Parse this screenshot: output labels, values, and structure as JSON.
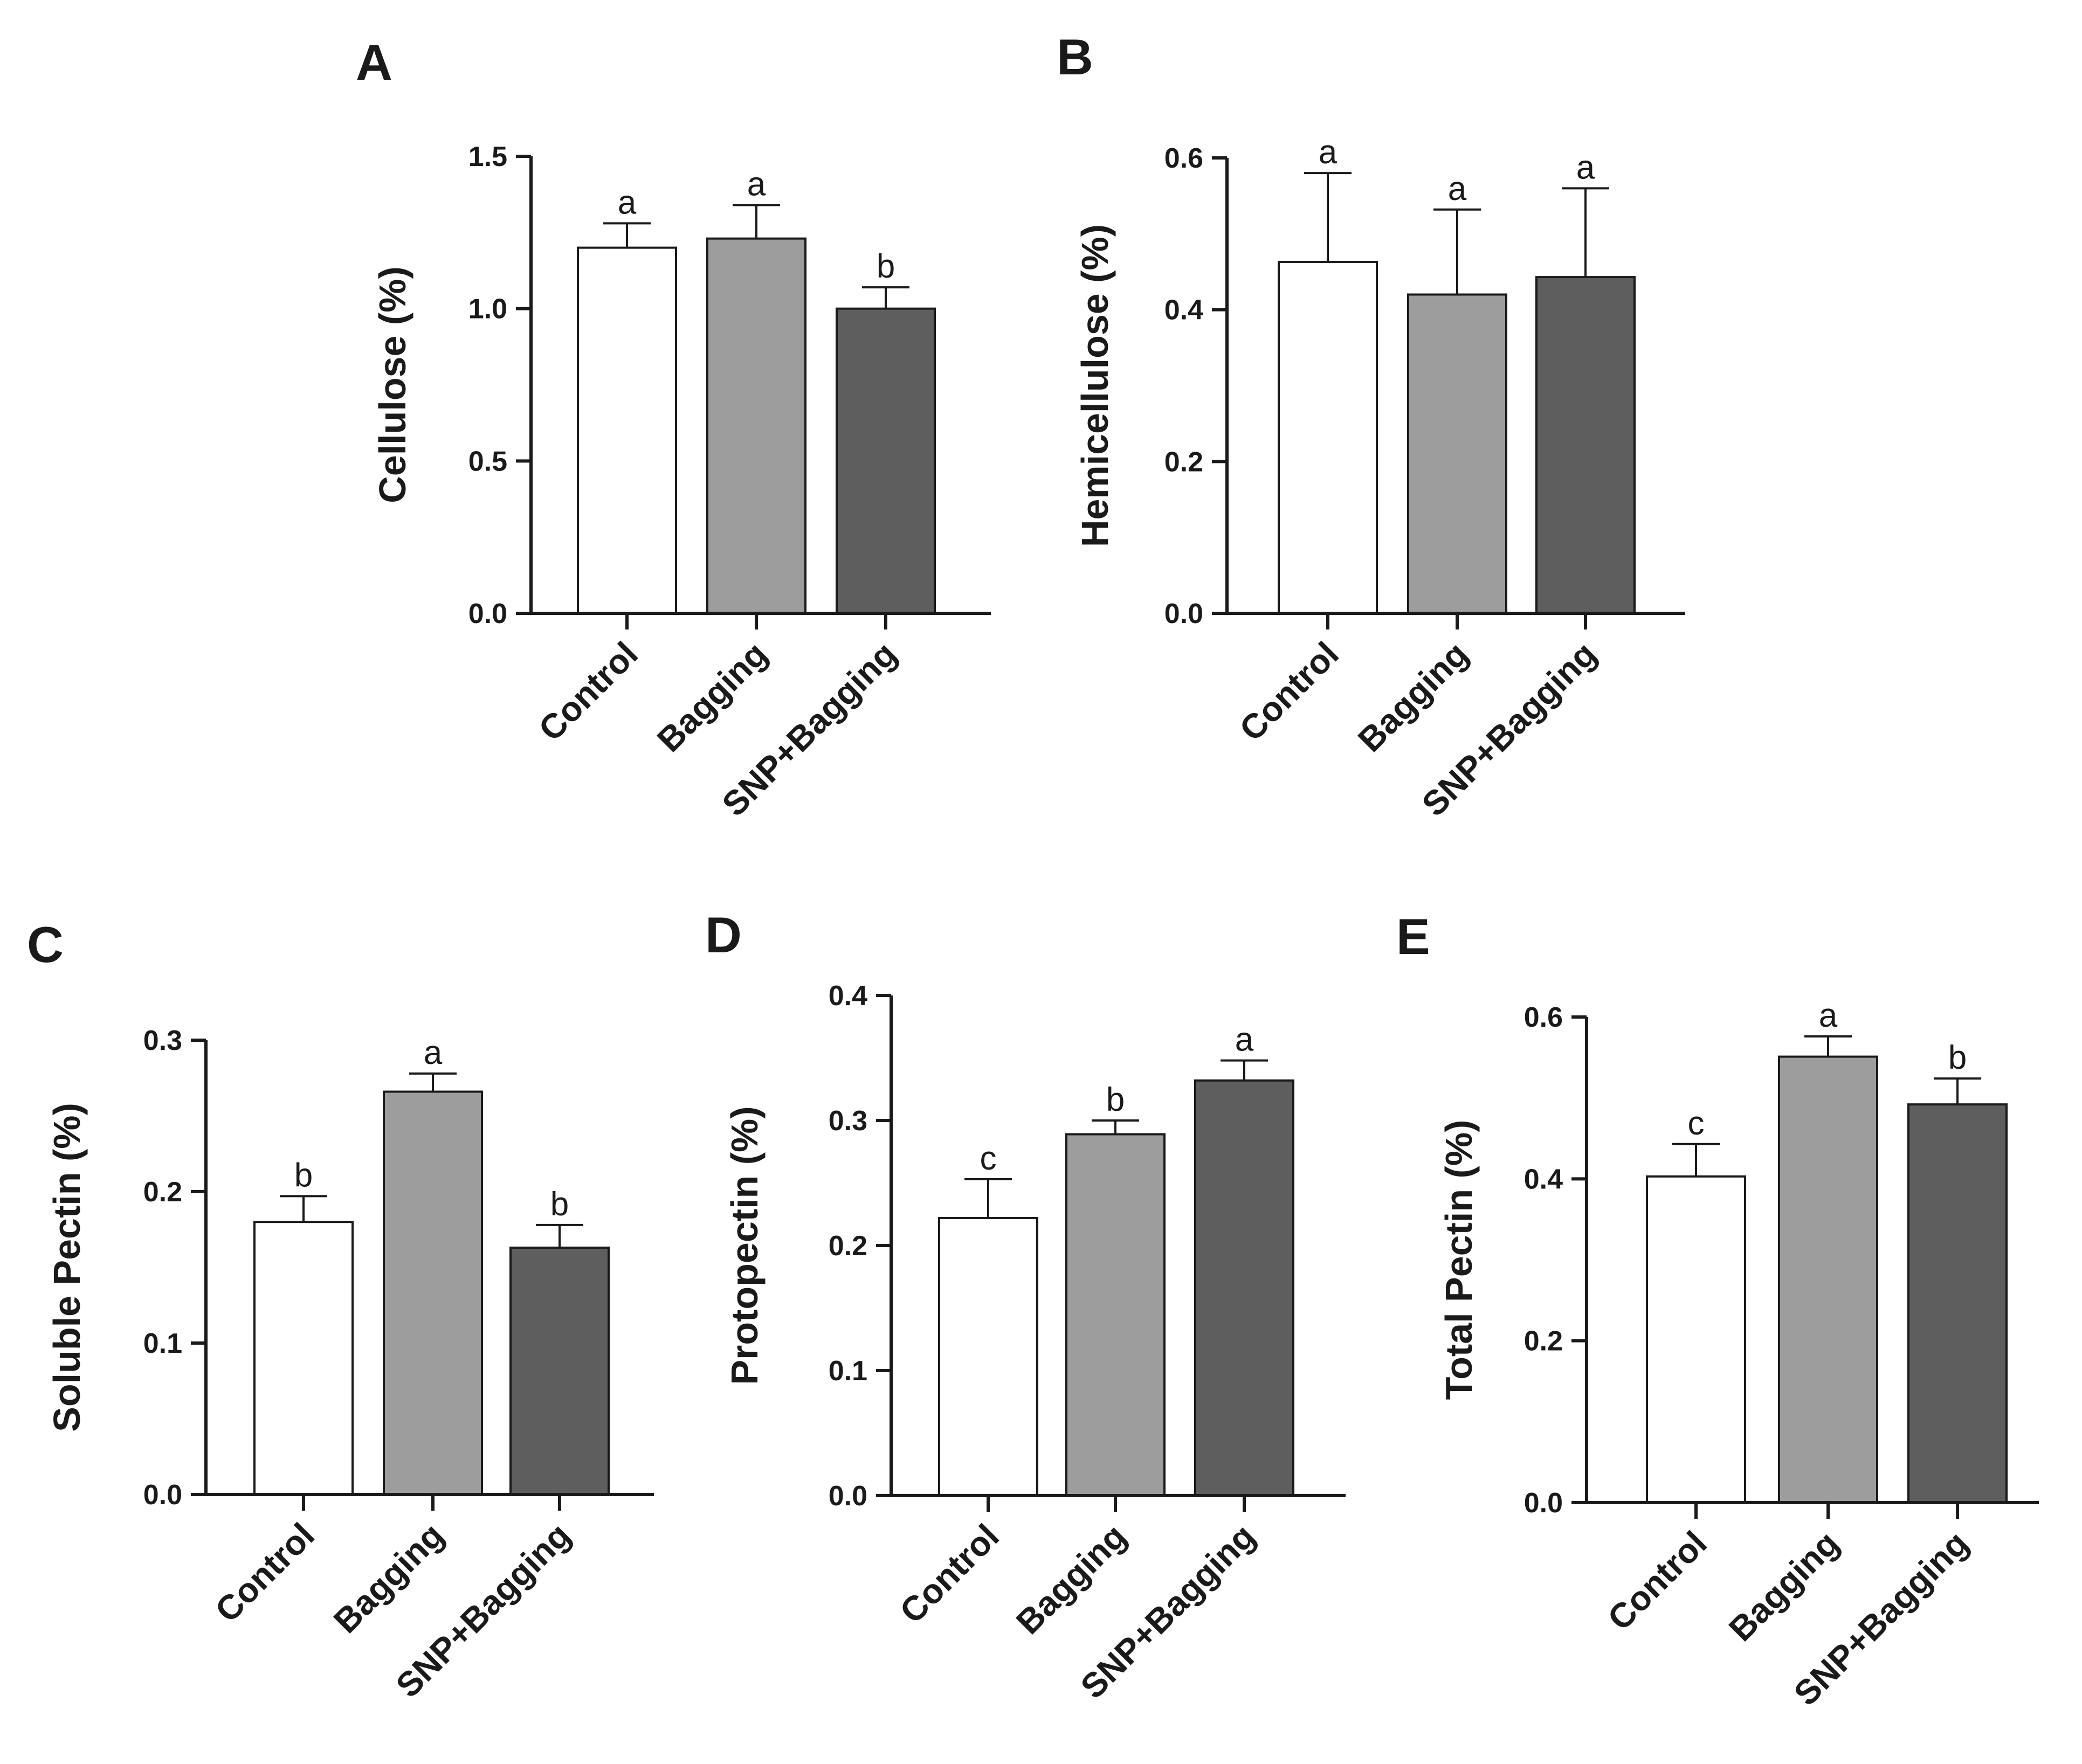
{
  "chart_data": [
    {
      "panel": "A",
      "type": "bar",
      "ylabel": "Cellulose (%)",
      "categories": [
        "Control",
        "Bagging",
        "SNP+Bagging"
      ],
      "values": [
        1.2,
        1.23,
        1.0
      ],
      "errors": [
        0.08,
        0.11,
        0.07
      ],
      "significance": [
        "a",
        "a",
        "b"
      ],
      "ylim": [
        0,
        1.5
      ],
      "yticks": [
        0,
        0.5,
        1.0,
        1.5
      ],
      "ytick_labels": [
        "0.0",
        "0.5",
        "1.0",
        "1.5"
      ],
      "colors": [
        "#ffffff",
        "#9d9d9d",
        "#5e5e5e"
      ]
    },
    {
      "panel": "B",
      "type": "bar",
      "ylabel": "Hemicellulose (%)",
      "categories": [
        "Control",
        "Bagging",
        "SNP+Bagging"
      ],
      "values": [
        0.463,
        0.42,
        0.443
      ],
      "errors": [
        0.117,
        0.112,
        0.117
      ],
      "significance": [
        "a",
        "a",
        "a"
      ],
      "ylim": [
        0,
        0.6
      ],
      "yticks": [
        0,
        0.2,
        0.4,
        0.6
      ],
      "ytick_labels": [
        "0.0",
        "0.2",
        "0.4",
        "0.6"
      ],
      "colors": [
        "#ffffff",
        "#9d9d9d",
        "#5e5e5e"
      ]
    },
    {
      "panel": "C",
      "type": "bar",
      "ylabel": "Soluble Pectin  (%)",
      "categories": [
        "Control",
        "Bagging",
        "SNP+Bagging"
      ],
      "values": [
        0.18,
        0.266,
        0.163
      ],
      "errors": [
        0.017,
        0.012,
        0.015
      ],
      "significance": [
        "b",
        "a",
        "b"
      ],
      "ylim": [
        0,
        0.3
      ],
      "yticks": [
        0,
        0.1,
        0.2,
        0.3
      ],
      "ytick_labels": [
        "0.0",
        "0.1",
        "0.2",
        "0.3"
      ],
      "colors": [
        "#ffffff",
        "#9d9d9d",
        "#5e5e5e"
      ]
    },
    {
      "panel": "D",
      "type": "bar",
      "ylabel": "Protopectin (%)",
      "categories": [
        "Control",
        "Bagging",
        "SNP+Bagging"
      ],
      "values": [
        0.222,
        0.289,
        0.332
      ],
      "errors": [
        0.031,
        0.011,
        0.016
      ],
      "significance": [
        "c",
        "b",
        "a"
      ],
      "ylim": [
        0,
        0.4
      ],
      "yticks": [
        0,
        0.1,
        0.2,
        0.3,
        0.4
      ],
      "ytick_labels": [
        "0.0",
        "0.1",
        "0.2",
        "0.3",
        "0.4"
      ],
      "colors": [
        "#ffffff",
        "#9d9d9d",
        "#5e5e5e"
      ]
    },
    {
      "panel": "E",
      "type": "bar",
      "ylabel": "Total Pectin (%)",
      "categories": [
        "Control",
        "Bagging",
        "SNP+Bagging"
      ],
      "values": [
        0.403,
        0.551,
        0.492
      ],
      "errors": [
        0.04,
        0.025,
        0.032
      ],
      "significance": [
        "c",
        "a",
        "b"
      ],
      "ylim": [
        0,
        0.6
      ],
      "yticks": [
        0,
        0.2,
        0.4,
        0.6
      ],
      "ytick_labels": [
        "0.0",
        "0.2",
        "0.4",
        "0.6"
      ],
      "colors": [
        "#ffffff",
        "#9d9d9d",
        "#5e5e5e"
      ]
    }
  ]
}
